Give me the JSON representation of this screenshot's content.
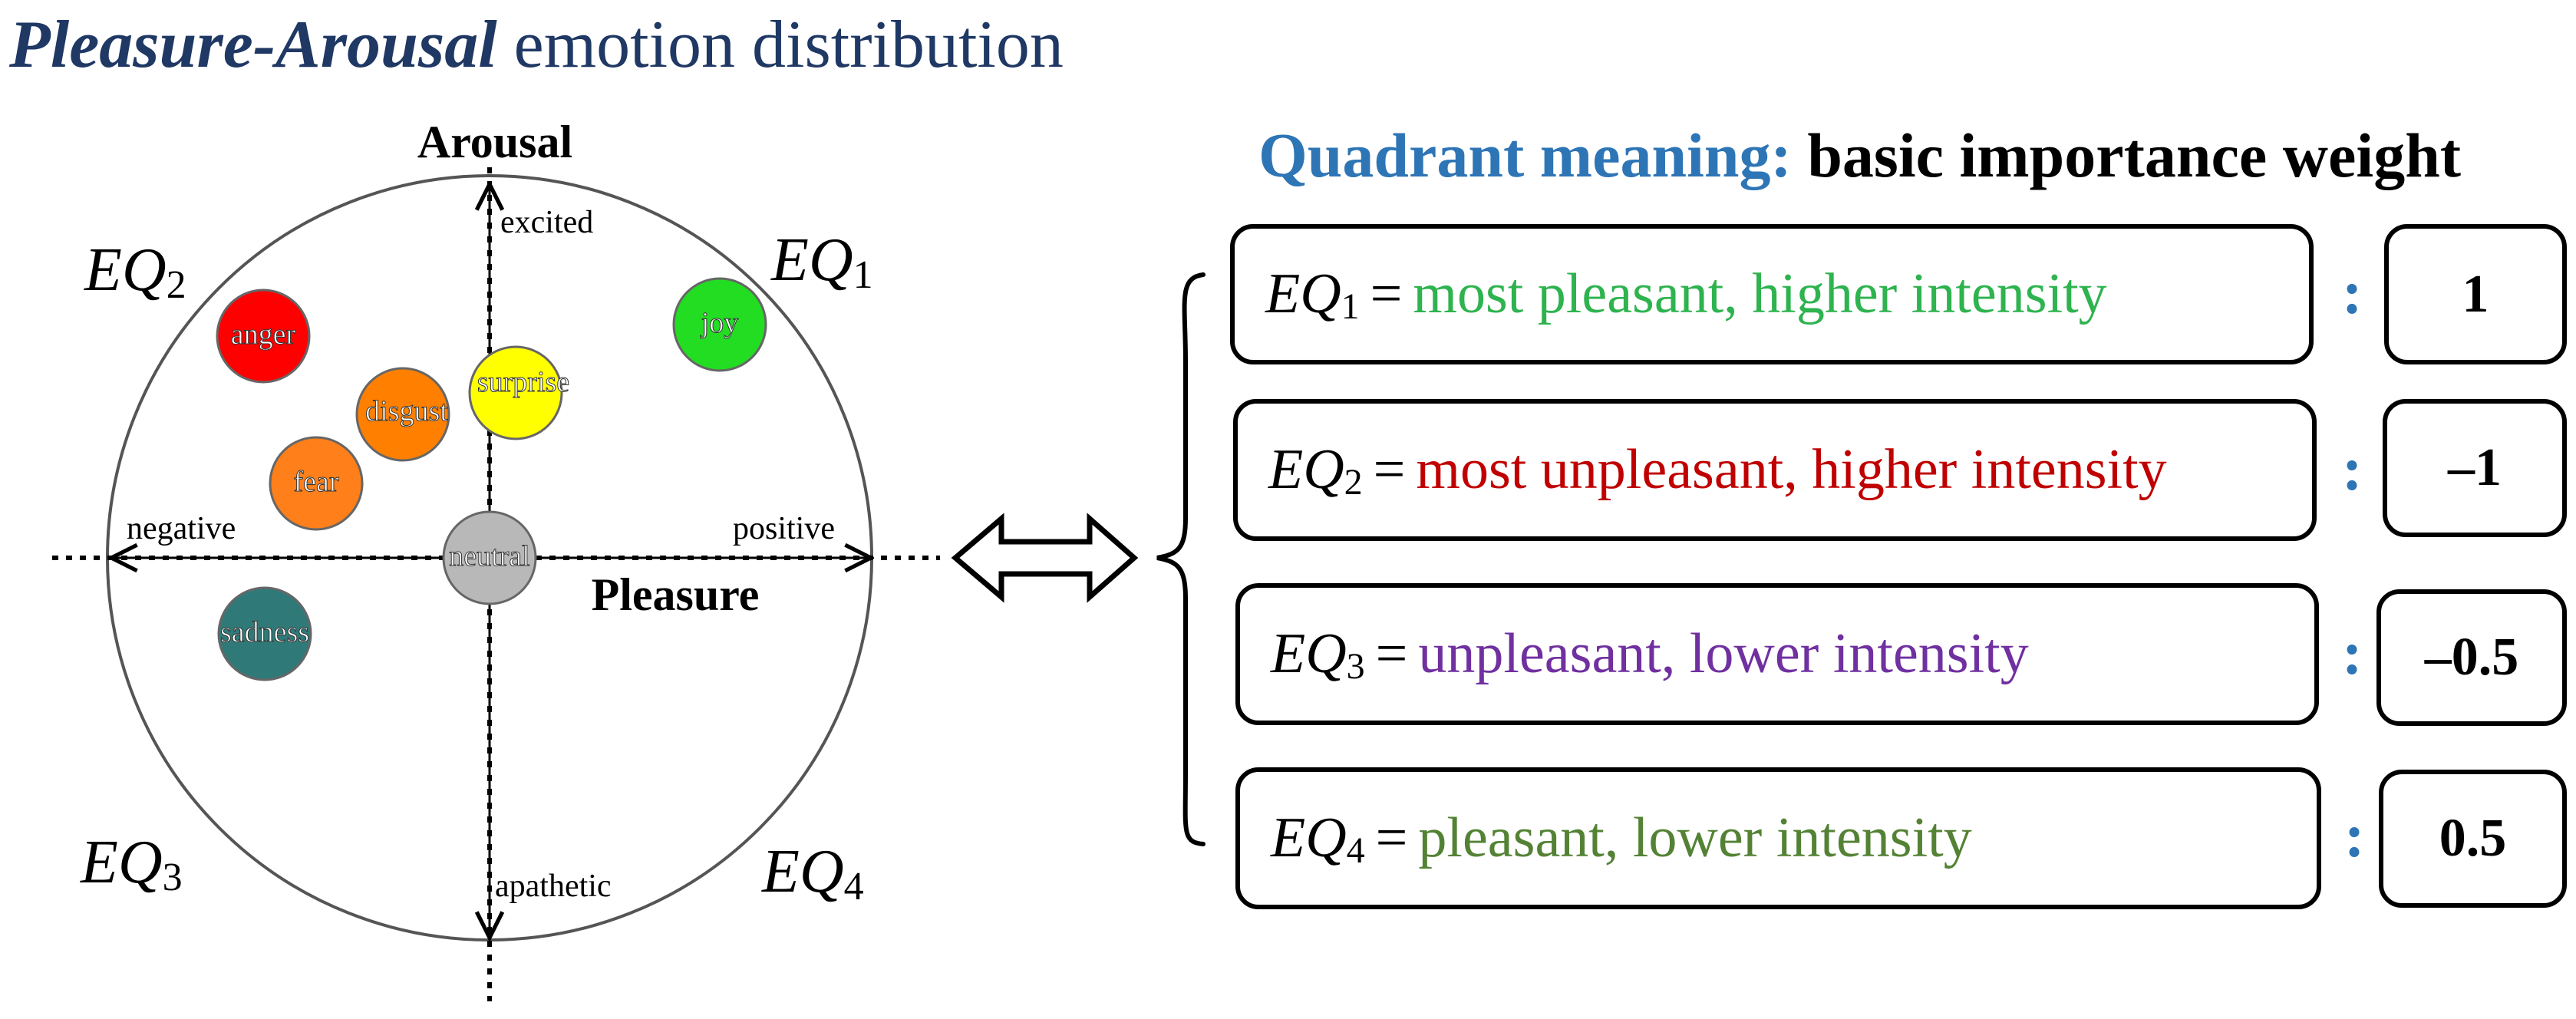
{
  "title": {
    "italic_part": "Pleasure-Arousal",
    "rest": " emotion distribution"
  },
  "diagram": {
    "axis_labels": {
      "arousal": "Arousal",
      "pleasure": "Pleasure"
    },
    "axis_end_labels": {
      "top": "excited",
      "bottom": "apathetic",
      "left": "negative",
      "right": "positive"
    },
    "quadrant_labels": [
      {
        "id": "EQ1",
        "base": "EQ",
        "sub": "1"
      },
      {
        "id": "EQ2",
        "base": "EQ",
        "sub": "2"
      },
      {
        "id": "EQ3",
        "base": "EQ",
        "sub": "3"
      },
      {
        "id": "EQ4",
        "base": "EQ",
        "sub": "4"
      }
    ],
    "emotions": [
      {
        "name": "anger",
        "color": "#ff0000"
      },
      {
        "name": "joy",
        "color": "#22dd22"
      },
      {
        "name": "surprise",
        "color": "#ffff00"
      },
      {
        "name": "disgust",
        "color": "#ff8000"
      },
      {
        "name": "fear",
        "color": "#ff7f1a"
      },
      {
        "name": "neutral",
        "color": "#b8b8b8"
      },
      {
        "name": "sadness",
        "color": "#2f7a78"
      }
    ]
  },
  "quadrant_meaning": {
    "heading_colored": "Quadrant meaning:",
    "heading_rest": " basic importance weight",
    "rows": [
      {
        "eq": "EQ",
        "sub": "1",
        "equals": "=",
        "meaning": "most pleasant, higher intensity",
        "color": "#2eb34f",
        "weight": "1"
      },
      {
        "eq": "EQ",
        "sub": "2",
        "equals": "=",
        "meaning": "most unpleasant, higher intensity",
        "color": "#c00000",
        "weight": "–1"
      },
      {
        "eq": "EQ",
        "sub": "3",
        "equals": "=",
        "meaning": "unpleasant, lower intensity",
        "color": "#7030a0",
        "weight": "–0.5"
      },
      {
        "eq": "EQ",
        "sub": "4",
        "equals": "=",
        "meaning": "pleasant, lower intensity",
        "color": "#548235",
        "weight": "0.5"
      }
    ],
    "separator": ":"
  },
  "colors": {
    "title": "#1f3864",
    "heading_accent": "#2e75b6"
  }
}
